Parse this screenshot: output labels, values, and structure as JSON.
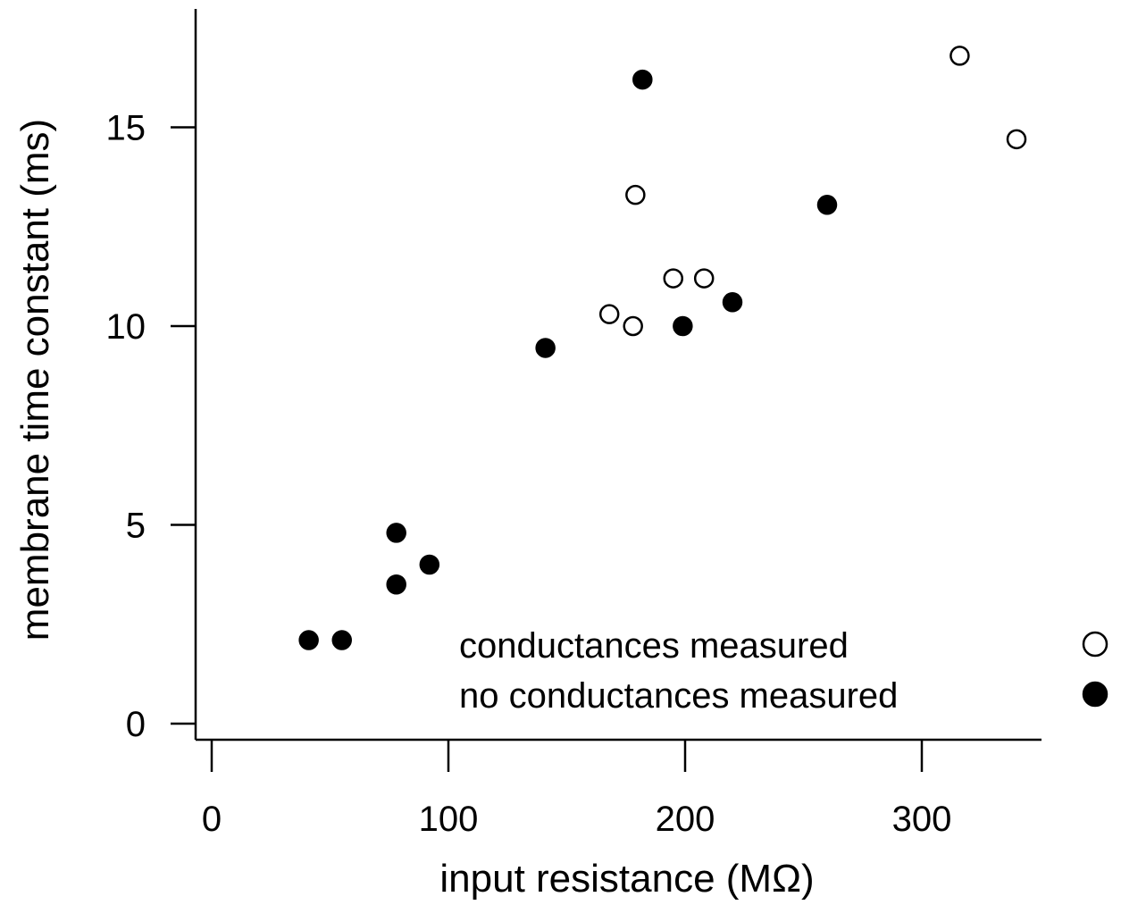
{
  "chart_data": {
    "type": "scatter",
    "title": "",
    "xlabel": "input resistance (MΩ)",
    "ylabel": "membrane time constant (ms)",
    "xlim": [
      -7,
      350
    ],
    "ylim": [
      -0.4,
      17.9
    ],
    "xticks": [
      0,
      100,
      200,
      300
    ],
    "yticks": [
      0,
      5,
      10,
      15
    ],
    "xtick_labels": [
      "0",
      "100",
      "200",
      "300"
    ],
    "ytick_labels": [
      "0",
      "5",
      "10",
      "15"
    ],
    "grid": false,
    "legend_position": "bottom-right",
    "series": [
      {
        "name": "conductances measured",
        "marker": "open-circle",
        "color": "#000000",
        "points": [
          {
            "x": 168,
            "y": 10.3
          },
          {
            "x": 178,
            "y": 10.0
          },
          {
            "x": 179,
            "y": 13.3
          },
          {
            "x": 195,
            "y": 11.2
          },
          {
            "x": 208,
            "y": 11.2
          },
          {
            "x": 316,
            "y": 16.8
          },
          {
            "x": 340,
            "y": 14.7
          }
        ]
      },
      {
        "name": "no conductances measured",
        "marker": "filled-circle",
        "color": "#000000",
        "points": [
          {
            "x": 41,
            "y": 2.1
          },
          {
            "x": 55,
            "y": 2.1
          },
          {
            "x": 78,
            "y": 4.8
          },
          {
            "x": 78,
            "y": 3.5
          },
          {
            "x": 92,
            "y": 4.0
          },
          {
            "x": 141,
            "y": 9.45
          },
          {
            "x": 182,
            "y": 16.2
          },
          {
            "x": 199,
            "y": 10.0
          },
          {
            "x": 220,
            "y": 10.6
          },
          {
            "x": 260,
            "y": 13.05
          }
        ]
      }
    ]
  }
}
